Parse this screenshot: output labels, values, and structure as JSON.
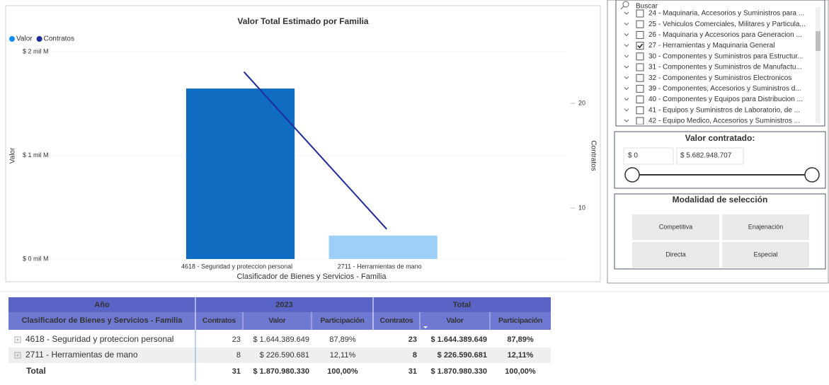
{
  "chart_data": {
    "type": "bar_line",
    "title": "Valor Total Estimado por Familia",
    "x_label": "Clasificador de Bienes y Servicios - Familia",
    "y_label": "Valor",
    "y2_label": "Contratos",
    "categories": [
      "4618 - Seguridad y proteccion personal",
      "2711 - Herramientas de mano"
    ],
    "series": [
      {
        "name": "Valor",
        "color": "#118dff",
        "bar_colors": [
          "#0f6cc0",
          "#9dd0f8"
        ],
        "type": "bar",
        "values": [
          1644389649,
          226590681
        ]
      },
      {
        "name": "Contratos",
        "color": "#1f2a9c",
        "type": "line",
        "axis": "y2",
        "values": [
          23,
          8
        ]
      }
    ],
    "ylim": [
      0,
      2000000000
    ],
    "yticks": [
      {
        "value": 0,
        "label": "$ 0 mil M"
      },
      {
        "value": 1000000000,
        "label": "$ 1 mil M"
      },
      {
        "value": 2000000000,
        "label": "$ 2 mil M"
      }
    ],
    "y2lim": [
      5.14,
      24.93
    ],
    "y2ticks": [
      10,
      20
    ],
    "legend": "top-left"
  },
  "slicer": {
    "search_placeholder": "Buscar",
    "items": [
      {
        "label": "24 - Maquinaria, Accesorios y Suministros para ...",
        "checked": false
      },
      {
        "label": "25 - Vehiculos Comerciales, Militares y Particula...",
        "checked": false
      },
      {
        "label": "26 - Maquinaria y Accesorios para Generacion ...",
        "checked": false
      },
      {
        "label": "27 - Herramientas y Maquinaria General",
        "checked": true
      },
      {
        "label": "30 - Componentes y Suministros para Estructur...",
        "checked": false
      },
      {
        "label": "31 - Componentes y Suministros de Manufactu...",
        "checked": false
      },
      {
        "label": "32 - Componentes y Suministros Electronicos",
        "checked": false
      },
      {
        "label": "39 - Componentes, Accesorios y Suministros d...",
        "checked": false
      },
      {
        "label": "40 - Componentes y Equipos para Distribucion ...",
        "checked": false
      },
      {
        "label": "41 - Equipos y Suministros de Laboratorio, de ...",
        "checked": false
      },
      {
        "label": "42 - Equipo Medico, Accesorios y Suministros ...",
        "checked": false
      }
    ]
  },
  "range_slicer": {
    "title": "Valor contratado:",
    "min_label": "$ 0",
    "max_label": "$ 5.682.948.707"
  },
  "mode_slicer": {
    "title": "Modalidad de selección",
    "options": [
      "Competitiva",
      "Enajenación",
      "Directa",
      "Especial"
    ]
  },
  "table": {
    "header_row1": [
      "Año",
      "2023",
      "Total"
    ],
    "header_row2": [
      "Clasificador de Bienes y Servicios - Familia",
      "Contratos",
      "Valor",
      "Participación",
      "Contratos",
      "Valor",
      "Participación"
    ],
    "rows": [
      [
        "4618 - Seguridad y proteccion personal",
        "23",
        "$ 1.644.389.649",
        "87,89%",
        "23",
        "$ 1.644.389.649",
        "87,89%"
      ],
      [
        "2711 - Herramientas de mano",
        "8",
        "$ 226.590.681",
        "12,11%",
        "8",
        "$ 226.590.681",
        "12,11%"
      ]
    ],
    "total": [
      "Total",
      "31",
      "$ 1.870.980.330",
      "100,00%",
      "31",
      "$ 1.870.980.330",
      "100,00%"
    ]
  }
}
